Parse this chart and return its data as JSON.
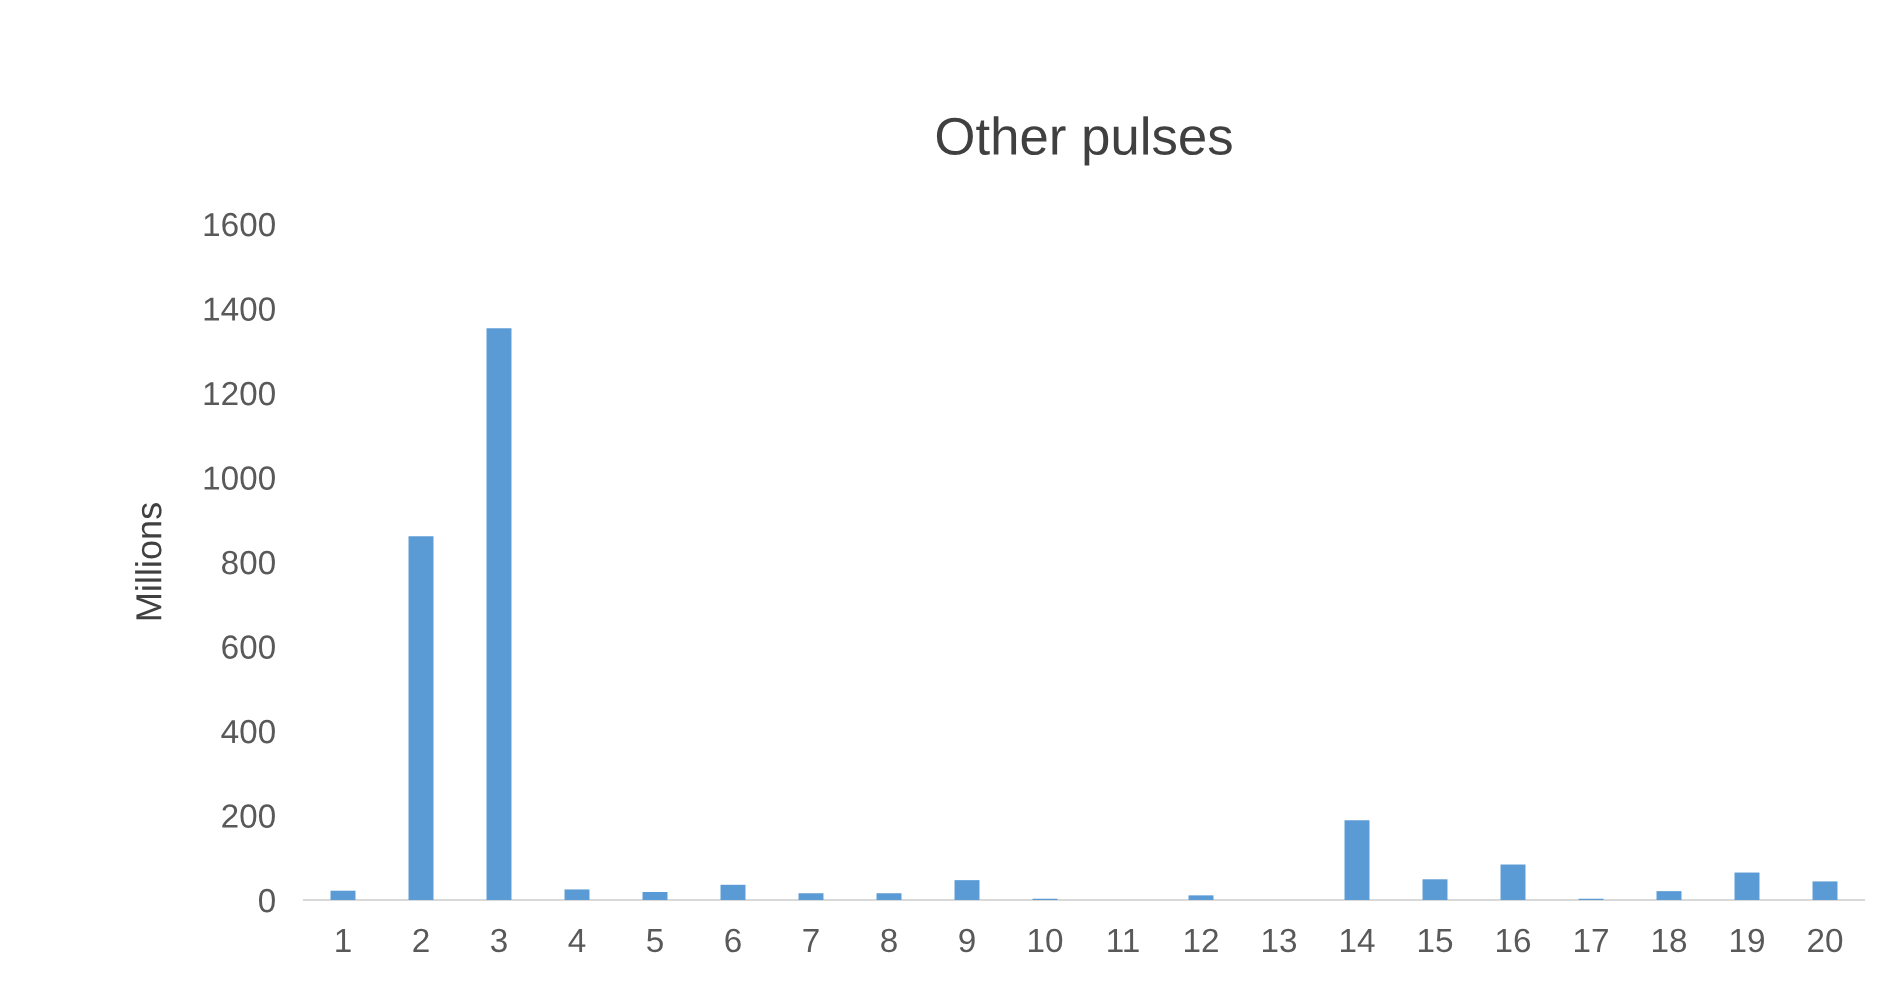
{
  "chart_data": {
    "type": "bar",
    "title": "Other pulses",
    "ylabel": "Millions",
    "categories": [
      "1",
      "2",
      "3",
      "4",
      "5",
      "6",
      "7",
      "8",
      "9",
      "10",
      "11",
      "12",
      "13",
      "14",
      "15",
      "16",
      "17",
      "18",
      "19",
      "20"
    ],
    "values": [
      22,
      861,
      1353,
      25,
      19,
      36,
      16,
      16,
      47,
      3,
      0,
      11,
      0,
      189,
      49,
      84,
      3,
      21,
      65,
      44
    ],
    "color": "#5b9bd5",
    "ylim": [
      0,
      1600
    ],
    "yticks": [
      0,
      200,
      400,
      600,
      800,
      1000,
      1200,
      1400,
      1600
    ],
    "grid": false
  }
}
